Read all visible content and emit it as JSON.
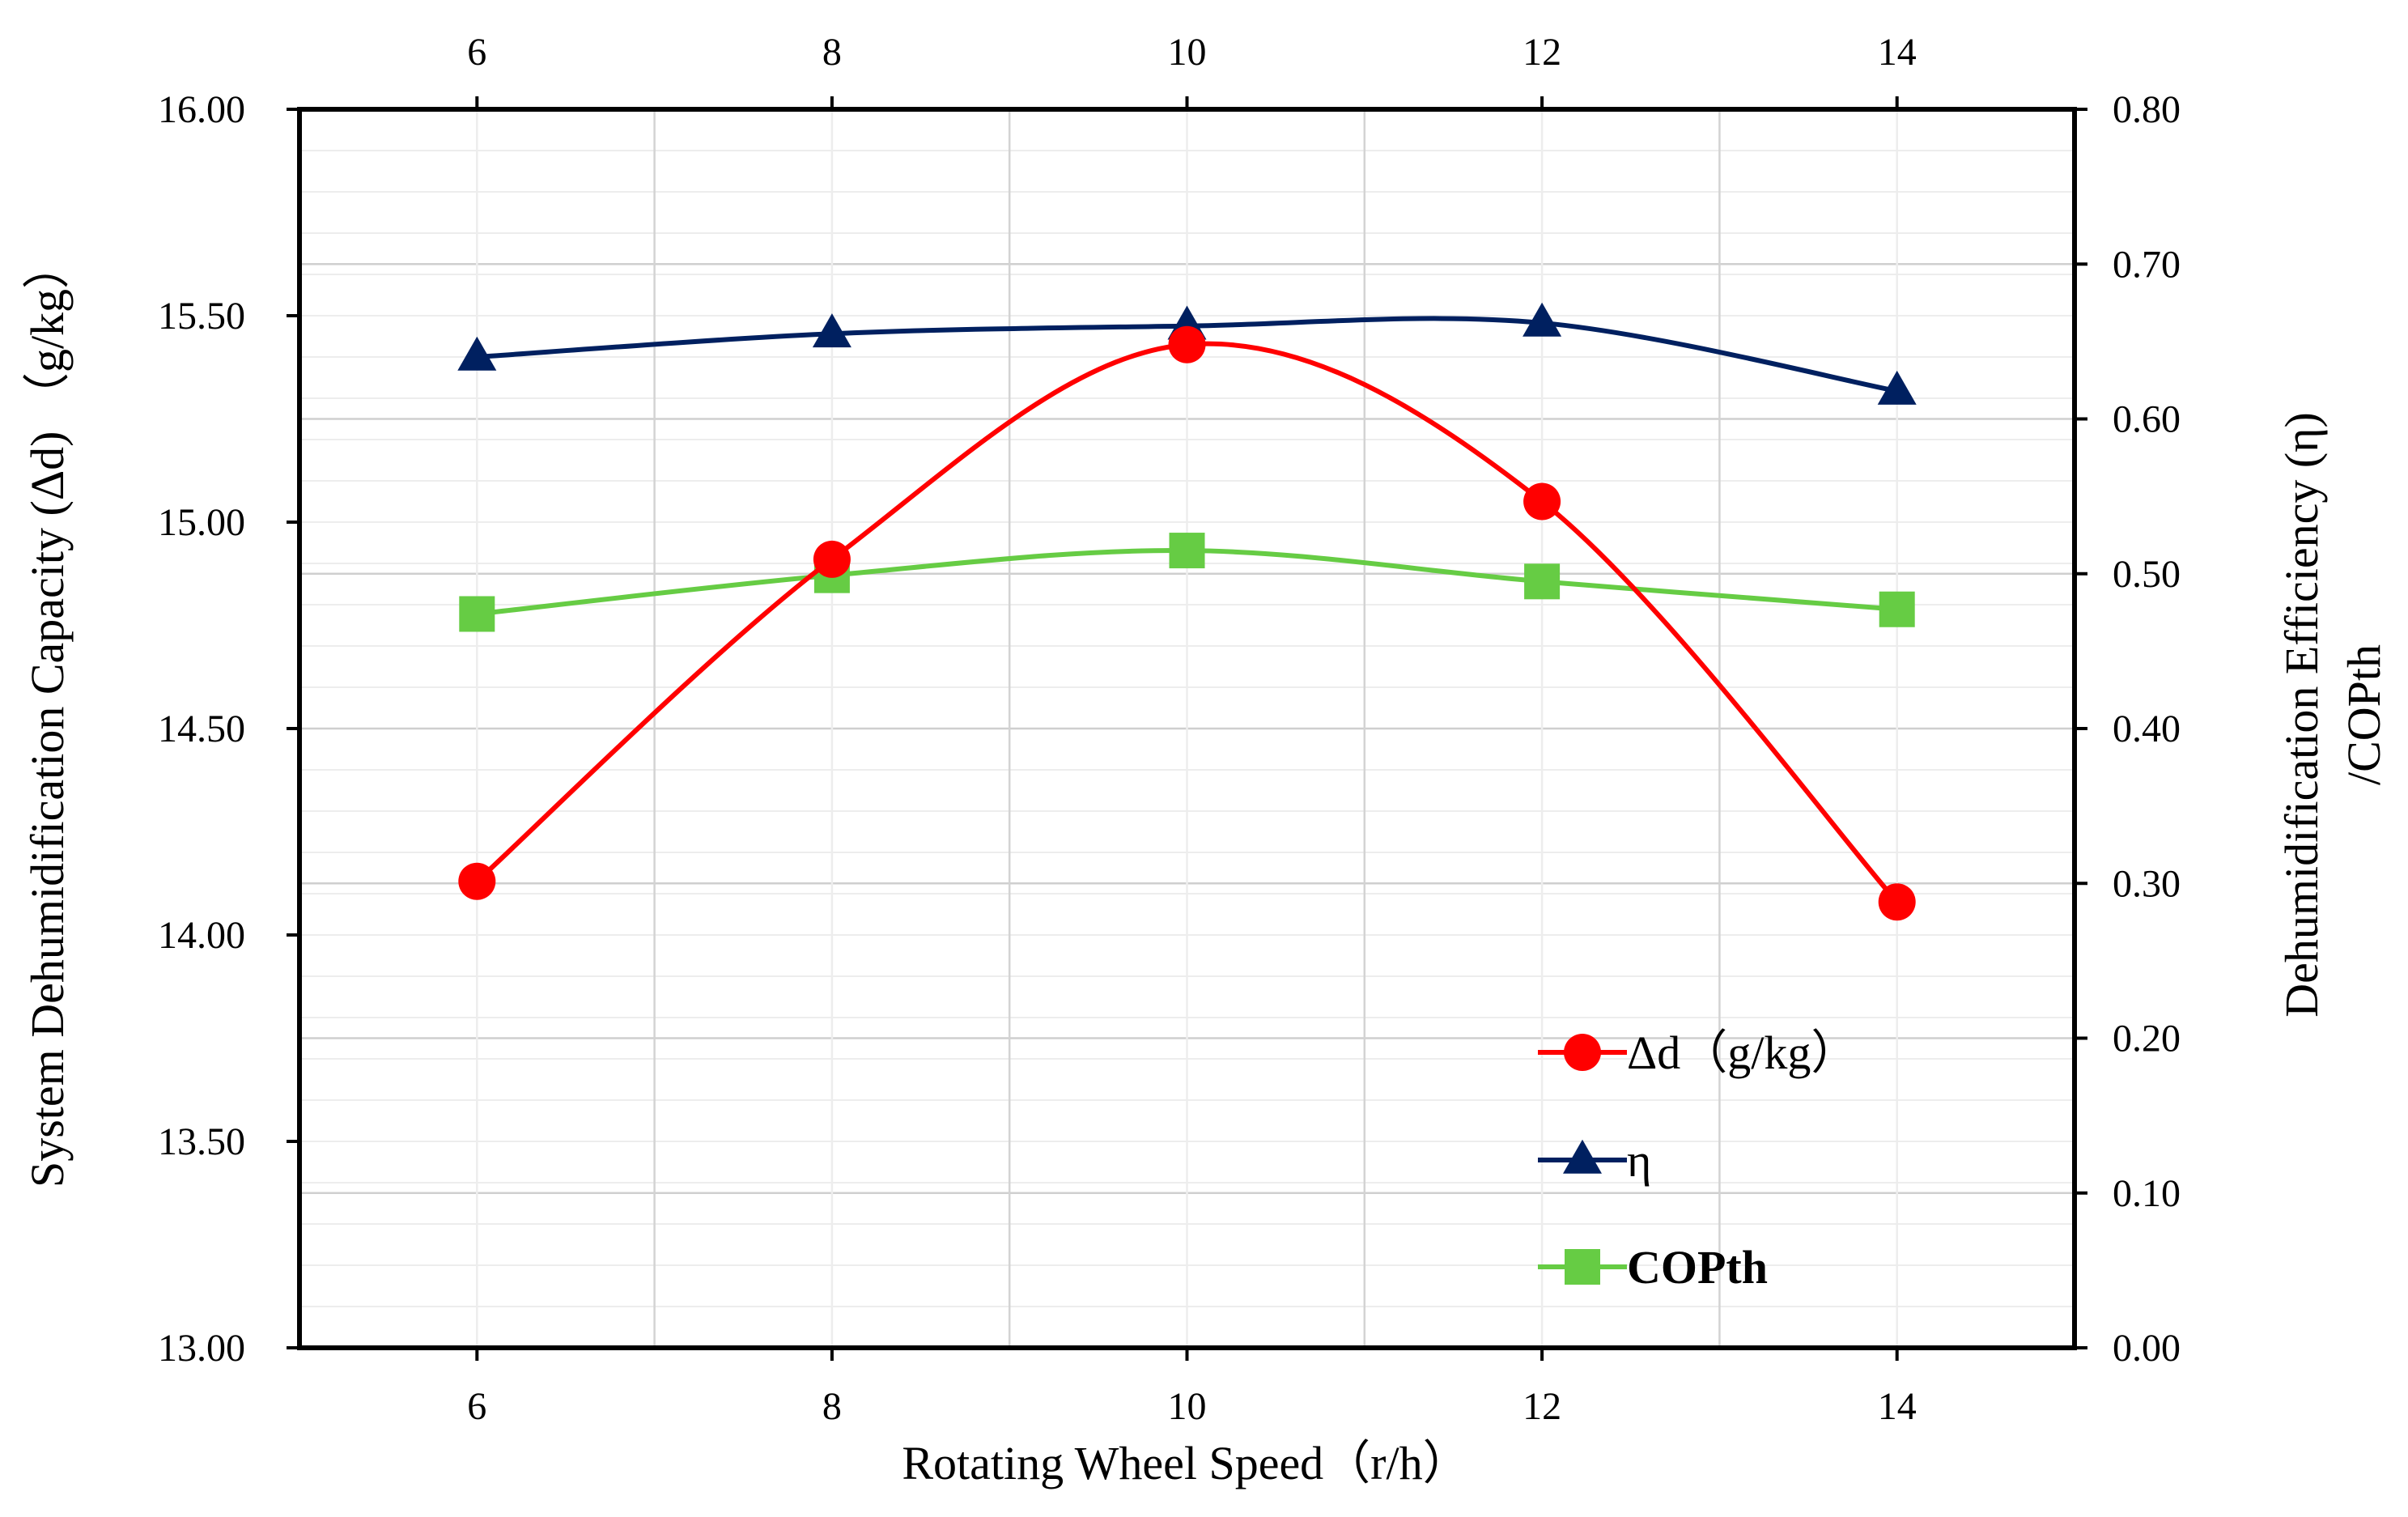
{
  "chart_data": {
    "type": "line",
    "title": "",
    "x": [
      6,
      8,
      10,
      12,
      14
    ],
    "xlim": [
      5,
      15
    ],
    "x_ticks": [
      "6",
      "8",
      "10",
      "12",
      "14"
    ],
    "xlabel": "Rotating Wheel Speed（r/h）",
    "ylabel_left": "System Dehumidification Capacity (Δd) （g/kg）",
    "ylabel_right_line1": "Dehumidification Efficiency (η)",
    "ylabel_right_line2": "/COPth",
    "ylim_left": [
      13.0,
      16.0
    ],
    "ylim_right": [
      0.0,
      0.8
    ],
    "y_ticks_left": [
      "13.00",
      "13.50",
      "14.00",
      "14.50",
      "15.00",
      "15.50",
      "16.00"
    ],
    "y_ticks_right": [
      "0.00",
      "0.10",
      "0.20",
      "0.30",
      "0.40",
      "0.50",
      "0.60",
      "0.70",
      "0.80"
    ],
    "grid": true,
    "legend_position": "bottom-right",
    "series": [
      {
        "name": "Δd（g/kg）",
        "axis": "left",
        "color": "#ff0000",
        "marker": "circle",
        "values": [
          14.13,
          14.91,
          15.43,
          15.05,
          14.08
        ]
      },
      {
        "name": "η",
        "axis": "right",
        "color": "#002060",
        "marker": "triangle",
        "values": [
          0.64,
          0.655,
          0.66,
          0.662,
          0.618
        ]
      },
      {
        "name": "COPth",
        "axis": "right",
        "color": "#66cc44",
        "marker": "square",
        "values": [
          0.474,
          0.499,
          0.515,
          0.495,
          0.477
        ]
      }
    ]
  }
}
